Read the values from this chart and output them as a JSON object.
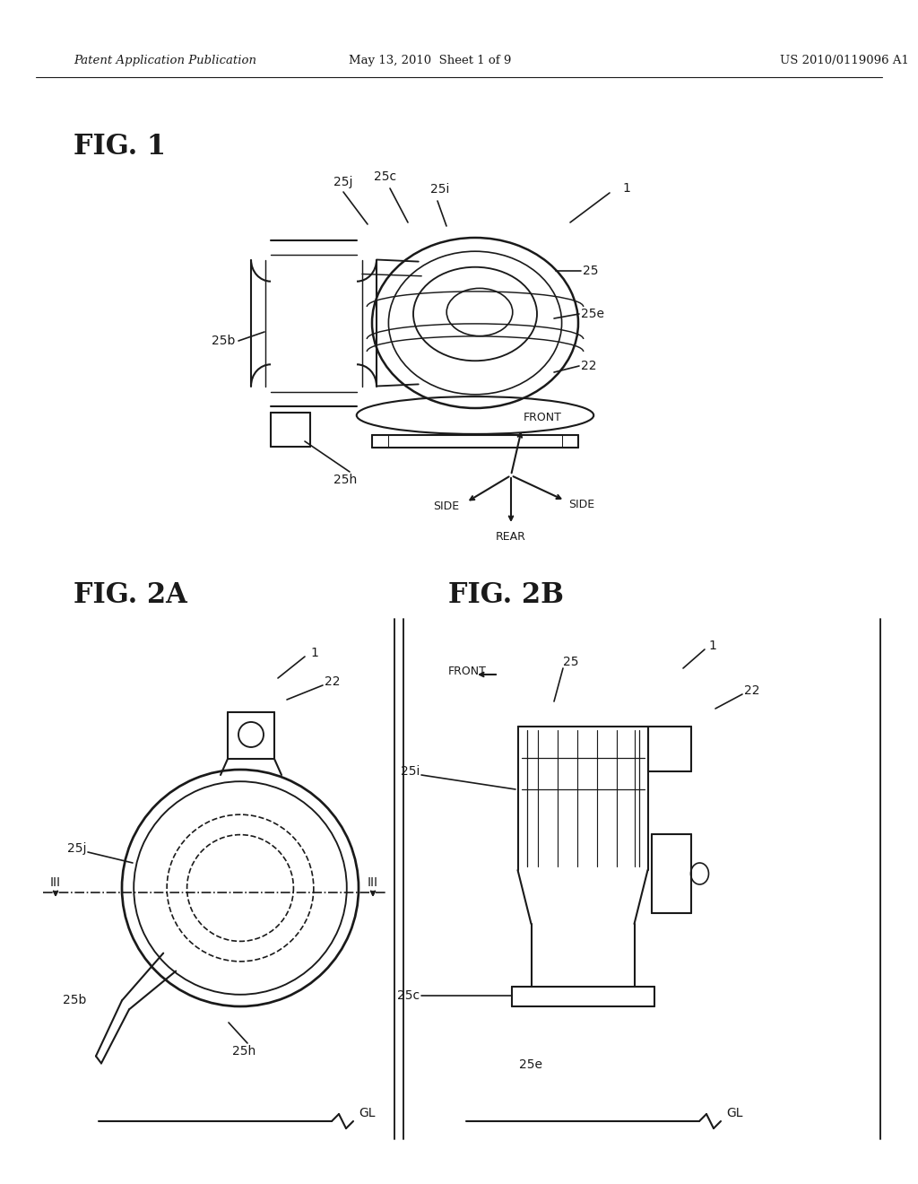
{
  "bg_color": "#ffffff",
  "page_width": 10.24,
  "page_height": 13.2,
  "header_left": "Patent Application Publication",
  "header_center": "May 13, 2010  Sheet 1 of 9",
  "header_right": "US 2010/0119096 A1",
  "line_color": "#1a1a1a"
}
